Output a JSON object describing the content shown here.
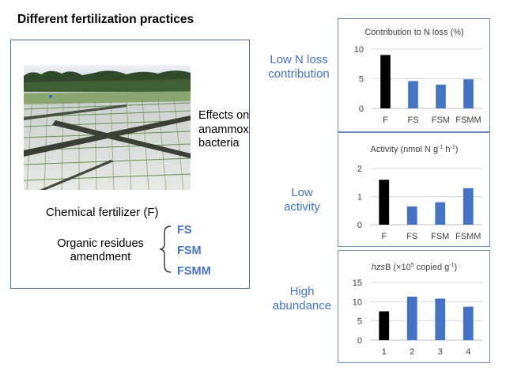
{
  "title": "Different fertilization practices",
  "photo_caption": [
    "Effects on",
    "anammox",
    "bacteria"
  ],
  "chemical_label": "Chemical fertilizer (F)",
  "organic_label": [
    "Organic residues",
    "amendment"
  ],
  "treatments": [
    "FS",
    "FSM",
    "FSMM"
  ],
  "side_labels": {
    "nloss": [
      "Low N loss",
      "contribution"
    ],
    "activity": [
      "Low",
      "activity"
    ],
    "abundance": [
      "High",
      "abundance"
    ]
  },
  "colors": {
    "highlight": "#4472c4",
    "black_bar": "#000000",
    "frame": "#4f6f99"
  },
  "chart_titles": {
    "nloss": "Contribution to N loss (%)",
    "activity": {
      "main": "Activity (nmol N g",
      "sup1": "-1",
      "mid": " h",
      "sup2": "-1",
      "end": ")"
    },
    "abundance": {
      "italic": "hzs",
      "main": "B (×10",
      "sup1": "5",
      "mid": " copied g",
      "sup2": "-1",
      "end": ")"
    }
  },
  "chart_data": [
    {
      "type": "bar",
      "categories": [
        "F",
        "FS",
        "FSM",
        "FSMM"
      ],
      "values": [
        9.0,
        4.6,
        4.0,
        4.9
      ],
      "ylim": [
        0,
        10
      ],
      "yticks": [
        0,
        5,
        10
      ],
      "bar_colors": [
        "#000000",
        "#4472c4",
        "#4472c4",
        "#4472c4"
      ],
      "grid": true
    },
    {
      "type": "bar",
      "categories": [
        "F",
        "FS",
        "FSM",
        "FSMM"
      ],
      "values": [
        1.6,
        0.65,
        0.8,
        1.3
      ],
      "ylim": [
        0,
        2
      ],
      "yticks": [
        0,
        1,
        2
      ],
      "bar_colors": [
        "#000000",
        "#4472c4",
        "#4472c4",
        "#4472c4"
      ],
      "grid": true
    },
    {
      "type": "bar",
      "categories": [
        "1",
        "2",
        "3",
        "4"
      ],
      "values": [
        7.5,
        11.3,
        10.8,
        8.7
      ],
      "ylim": [
        0,
        15
      ],
      "yticks": [
        0,
        5,
        10,
        15
      ],
      "bar_colors": [
        "#000000",
        "#4472c4",
        "#4472c4",
        "#4472c4"
      ],
      "grid": true
    }
  ]
}
